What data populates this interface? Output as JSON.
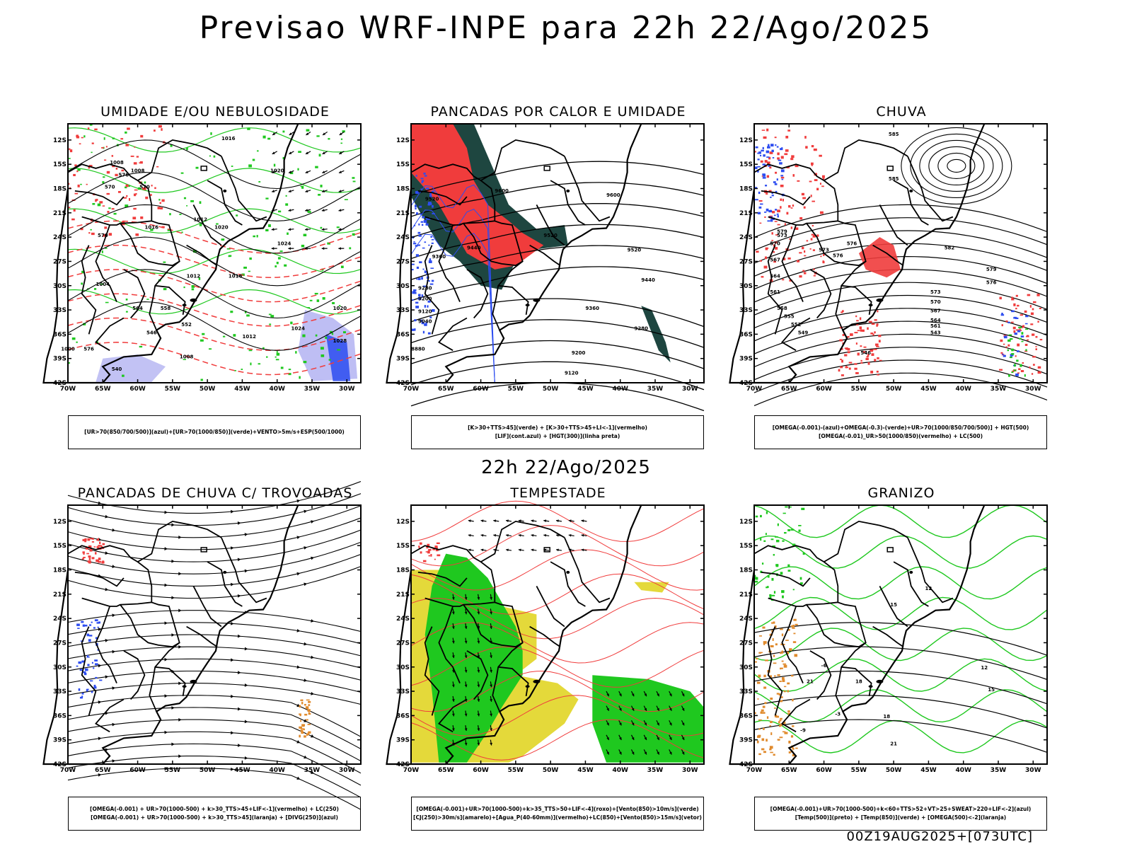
{
  "header": {
    "title": "Previsao WRF-INPE  para 22h 22/Ago/2025",
    "mid_title": "22h 22/Ago/2025",
    "footer": "00Z19AUG2025+[073UTC]"
  },
  "axes": {
    "lat_labels": [
      "12S",
      "15S",
      "18S",
      "21S",
      "24S",
      "27S",
      "30S",
      "33S",
      "36S",
      "39S",
      "42S"
    ],
    "lon_labels": [
      "70W",
      "65W",
      "60W",
      "55W",
      "50W",
      "45W",
      "40W",
      "35W",
      "30W"
    ]
  },
  "panels": [
    {
      "title": "UMIDADE E/OU NEBULOSIDADE",
      "legend": [
        "[UR>70(850/700/500)](azul)+[UR>70(1000/850)](verde)+VENTO>5m/s+ESP(500/1000)"
      ],
      "contour_labels": [
        "1016",
        "1008",
        "1008",
        "1012",
        "1020",
        "1016",
        "1020",
        "1024",
        "1012",
        "1004",
        "1016",
        "1020",
        "1028",
        "1024",
        "1012",
        "1008",
        "1000",
        "576",
        "570",
        "570",
        "564",
        "558",
        "552",
        "546",
        "540",
        "576",
        "570"
      ]
    },
    {
      "title": "PANCADAS POR CALOR E UMIDADE",
      "legend": [
        "[K>30+TTS>45](verde) + [K>30+TTS>45+LI<-1](vermelho)",
        "[LIF](cont.azul) + [HGT(300)](linha preta)"
      ],
      "contour_labels": [
        "9600",
        "9600",
        "9520",
        "9520",
        "9440",
        "9440",
        "9360",
        "9360",
        "9280",
        "9280",
        "9200",
        "9200",
        "9120",
        "9120",
        "9040",
        "8880",
        "9520"
      ]
    },
    {
      "title": "CHUVA",
      "legend": [
        "[OMEGA(-0.001)-(azul)+OMEGA(-0.3)-(verde)+UR>70(1000/850/700/500)] + HGT(500)",
        "[OMEGA(-0.01)_UR>50(1000/850)(vermelho) + LC(500)"
      ],
      "contour_labels": [
        "585",
        "585",
        "582",
        "579",
        "576",
        "573",
        "576",
        "579",
        "573",
        "570",
        "567",
        "564",
        "561",
        "558",
        "555",
        "552",
        "549",
        "546",
        "543",
        "561",
        "564",
        "567",
        "570",
        "573",
        "576"
      ]
    },
    {
      "title": "PANCADAS DE CHUVA C/ TROVOADAS",
      "legend": [
        "[OMEGA(-0.001) + UR>70(1000-500) + k>30_TTS>45+LIF<-1](vermelho) + LC(250)",
        "[OMEGA(-0.001) + UR>70(1000-500) + k>30_TTS>45](laranja) + [DIVG(250)](azul)"
      ],
      "contour_labels": []
    },
    {
      "title": "TEMPESTADE",
      "legend": [
        "[OMEGA(-0.001)+UR>70(1000-500)+k>35_TTS>50+LIF<-4](roxo)+[Vento(850)>10m/s](verde)",
        "[CJ(250)>30m/s](amarelo)+[Agua_P(40-60mm)](vermelho)+LC(850)+[Vento(850)>15m/s](vetor)"
      ],
      "contour_labels": []
    },
    {
      "title": "GRANIZO",
      "legend": [
        "[OMEGA(-0.001)+UR>70(1000-500)+k<60+TTS>52+VT>25+SWEAT>220+LIF<-2](azul)",
        "[Temp(500)](preto) + [Temp(850)](verde) + [OMEGA(500)<-2](laranja)"
      ],
      "contour_labels": [
        "12",
        "12",
        "15",
        "15",
        "18",
        "18",
        "21",
        "21",
        "-6",
        "-3",
        "-9"
      ]
    }
  ],
  "colors": {
    "red": "#f03c3c",
    "green": "#1fc81f",
    "blue": "#2c4cf0",
    "lightblue": "#a8a8f0",
    "darkteal": "#1e4640",
    "yellow": "#e4d93a",
    "orange": "#e08a2c",
    "coastline": "#000000"
  }
}
